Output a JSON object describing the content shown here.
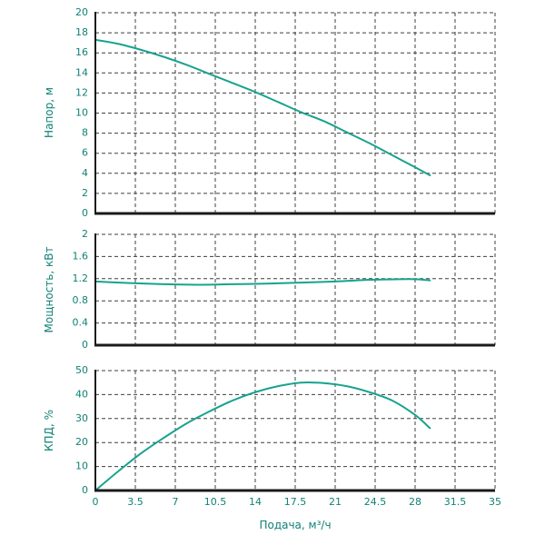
{
  "colors": {
    "curve": "#17a38e",
    "text": "#0f8276",
    "grid": "#3f3f3f",
    "axis": "#1a1a1a",
    "background": "#ffffff"
  },
  "x_axis": {
    "title": "Подача, м³/ч",
    "min": 0,
    "max": 35,
    "ticks": [
      0,
      3.5,
      7,
      10.5,
      14,
      17.5,
      21,
      24.5,
      28,
      31.5,
      35
    ],
    "tick_labels": [
      "0",
      "3.5",
      "7",
      "10.5",
      "14",
      "17.5",
      "21",
      "24.5",
      "28",
      "31.5",
      "35"
    ]
  },
  "chart_data": [
    {
      "type": "line",
      "name": "head",
      "ylabel": "Напор, м",
      "ymin": 0,
      "ymax": 20,
      "yticks": [
        0,
        2,
        4,
        6,
        8,
        10,
        12,
        14,
        16,
        18,
        20
      ],
      "ytick_labels": [
        "0",
        "2",
        "4",
        "6",
        "8",
        "10",
        "12",
        "14",
        "16",
        "18",
        "20"
      ],
      "grid": true,
      "x": [
        0,
        2,
        4,
        6,
        8,
        10,
        12,
        14,
        16,
        18,
        20,
        22,
        24,
        26,
        28,
        29.3
      ],
      "y": [
        17.3,
        16.9,
        16.3,
        15.6,
        14.8,
        13.9,
        13.0,
        12.1,
        11.1,
        10.1,
        9.2,
        8.1,
        7.0,
        5.8,
        4.6,
        3.8
      ]
    },
    {
      "type": "line",
      "name": "power",
      "ylabel": "Мощность, кВт",
      "ymin": 0,
      "ymax": 2,
      "yticks": [
        0,
        0.4,
        0.8,
        1.2,
        1.6,
        2
      ],
      "ytick_labels": [
        "0",
        "0.4",
        "0.8",
        "1.2",
        "1.6",
        "2"
      ],
      "grid": true,
      "x": [
        0,
        3,
        6,
        9,
        12,
        15,
        18,
        21,
        24,
        26.5,
        28,
        29.3
      ],
      "y": [
        1.15,
        1.12,
        1.1,
        1.09,
        1.1,
        1.11,
        1.13,
        1.15,
        1.18,
        1.19,
        1.19,
        1.17
      ]
    },
    {
      "type": "line",
      "name": "efficiency",
      "ylabel": "КПД, %",
      "ymin": 0,
      "ymax": 50,
      "yticks": [
        0,
        10,
        20,
        30,
        40,
        50
      ],
      "ytick_labels": [
        "0",
        "10",
        "20",
        "30",
        "40",
        "50"
      ],
      "grid": true,
      "x": [
        0,
        2,
        4,
        6,
        8,
        10,
        12,
        14,
        16,
        18,
        20,
        22,
        24,
        26,
        28,
        29.3
      ],
      "y": [
        0,
        8,
        15.5,
        22,
        28,
        33,
        37.5,
        41,
        43.5,
        45,
        44.8,
        43.5,
        41,
        37.5,
        31.5,
        26
      ]
    }
  ]
}
